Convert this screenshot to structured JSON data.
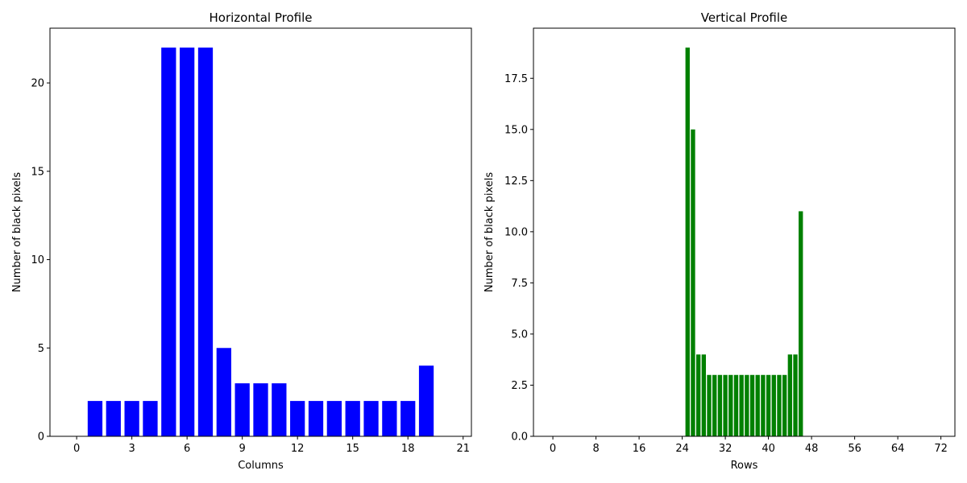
{
  "chart_data": [
    {
      "type": "bar",
      "title": "Horizontal Profile",
      "xlabel": "Columns",
      "ylabel": "Number of black pixels",
      "x": [
        0,
        1,
        2,
        3,
        4,
        5,
        6,
        7,
        8,
        9,
        10,
        11,
        12,
        13,
        14,
        15,
        16,
        17,
        18,
        19,
        20
      ],
      "values": [
        0,
        2,
        2,
        2,
        2,
        22,
        22,
        22,
        5,
        3,
        3,
        3,
        2,
        2,
        2,
        2,
        2,
        2,
        2,
        4,
        0
      ],
      "xlim": [
        -1.45,
        21.45
      ],
      "ylim": [
        0,
        23.1
      ],
      "xticks": [
        "0",
        "3",
        "6",
        "9",
        "12",
        "15",
        "18",
        "21"
      ],
      "yticks": [
        "0",
        "5",
        "10",
        "15",
        "20"
      ],
      "bar_color": "#0000ff",
      "grid": false
    },
    {
      "type": "bar",
      "title": "Vertical Profile",
      "xlabel": "Rows",
      "ylabel": "Number of black pixels",
      "x": [
        25,
        26,
        27,
        28,
        29,
        30,
        31,
        32,
        33,
        34,
        35,
        36,
        37,
        38,
        39,
        40,
        41,
        42,
        43,
        44,
        45,
        46
      ],
      "values": [
        19,
        15,
        4,
        4,
        3,
        3,
        3,
        3,
        3,
        3,
        3,
        3,
        3,
        3,
        3,
        3,
        3,
        3,
        3,
        4,
        4,
        11
      ],
      "xlim": [
        -3.6,
        74.6
      ],
      "ylim": [
        0,
        19.95
      ],
      "xticks": [
        "0",
        "8",
        "16",
        "24",
        "32",
        "40",
        "48",
        "56",
        "64",
        "72"
      ],
      "yticks": [
        "0.0",
        "2.5",
        "5.0",
        "7.5",
        "10.0",
        "12.5",
        "15.0",
        "17.5"
      ],
      "bar_color": "#008000",
      "grid": false
    }
  ]
}
